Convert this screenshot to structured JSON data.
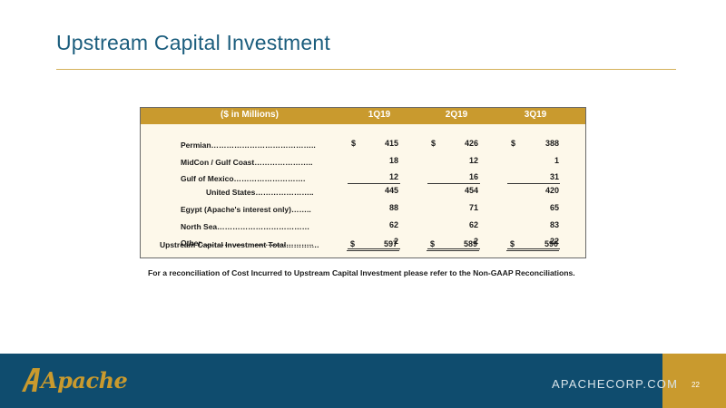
{
  "slide": {
    "title": "Upstream Capital Investment",
    "footnote": "For a reconciliation of Cost Incurred to Upstream Capital Investment please refer to the Non-GAAP Reconciliations.",
    "website": "APACHECORP.COM",
    "page_number": "22",
    "logo_text": "Apache"
  },
  "table": {
    "unit_header": "($ in Millions)",
    "columns": [
      "1Q19",
      "2Q19",
      "3Q19"
    ],
    "currency_symbol": "$",
    "rows": [
      {
        "label": "Permian…………………………………..",
        "values": [
          "415",
          "426",
          "388"
        ]
      },
      {
        "label": "MidCon / Gulf Coast…………………..",
        "values": [
          "18",
          "12",
          "1"
        ]
      },
      {
        "label": "Gulf of Mexico……………………….",
        "values": [
          "12",
          "16",
          "31"
        ]
      },
      {
        "label": "United States…………………..",
        "values": [
          "445",
          "454",
          "420"
        ]
      },
      {
        "label": "Egypt (Apache's interest only)……..",
        "values": [
          "88",
          "71",
          "65"
        ]
      },
      {
        "label": "North Sea………………………………",
        "values": [
          "62",
          "62",
          "83"
        ]
      },
      {
        "label": "Other……………………………………..",
        "values": [
          "2",
          "2",
          "22"
        ]
      },
      {
        "label": "Upstream Capital Investment Total………….",
        "values": [
          "597",
          "589",
          "590"
        ]
      }
    ]
  },
  "colors": {
    "title": "#1b5d7d",
    "gold": "#c99a2e",
    "footer": "#0f4c6e"
  }
}
